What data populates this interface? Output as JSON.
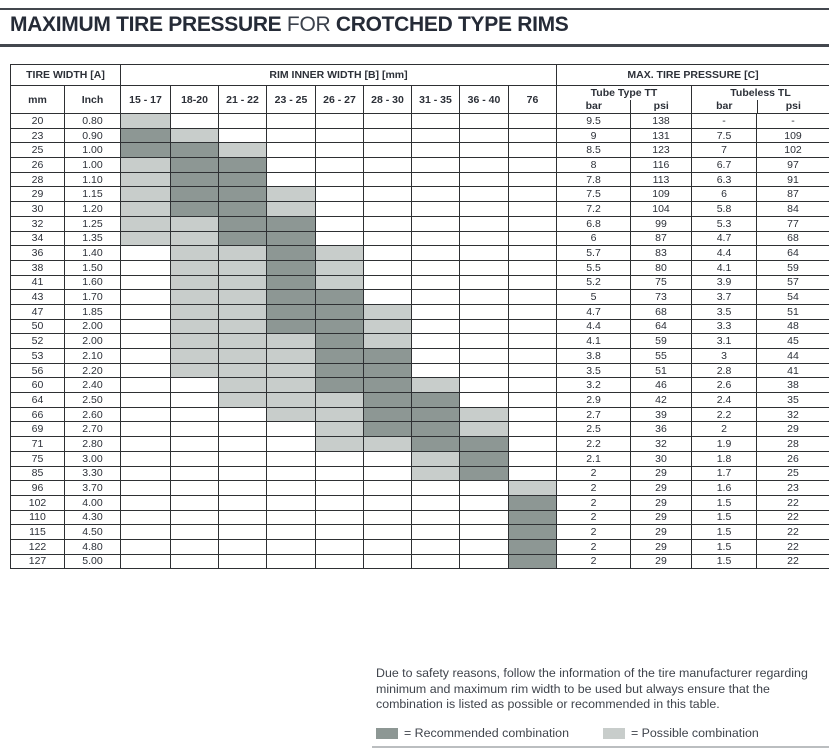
{
  "title": {
    "part1": "MAXIMUM TIRE PRESSURE",
    "part2": " FOR ",
    "part3": "CROTCHED TYPE RIMS"
  },
  "colors": {
    "recommended": "#8d9794",
    "possible": "#c8cdcb",
    "rule": "#43474e"
  },
  "table": {
    "group_headers": {
      "tire_width": "TIRE WIDTH [A]",
      "rim_inner_width": "RIM INNER WIDTH [B] [mm]",
      "max_pressure": "MAX. TIRE PRESSURE [C]"
    },
    "col_headers": {
      "mm": "mm",
      "inch": "Inch",
      "rim_widths": [
        "15 - 17",
        "18-20",
        "21 - 22",
        "23 - 25",
        "26 - 27",
        "28 - 30",
        "31 - 35",
        "36 - 40",
        "76"
      ],
      "tube_type": "Tube Type  TT",
      "tubeless": "Tubeless  TL",
      "bar": "bar",
      "psi": "psi"
    },
    "shading_legend": {
      "0": "none",
      "1": "possible",
      "2": "recommended"
    },
    "rows": [
      {
        "mm": "20",
        "inch": "0.80",
        "shading": [
          1,
          0,
          0,
          0,
          0,
          0,
          0,
          0,
          0
        ],
        "tt_bar": "9.5",
        "tt_psi": "138",
        "tl_bar": "-",
        "tl_psi": "-"
      },
      {
        "mm": "23",
        "inch": "0.90",
        "shading": [
          2,
          1,
          0,
          0,
          0,
          0,
          0,
          0,
          0
        ],
        "tt_bar": "9",
        "tt_psi": "131",
        "tl_bar": "7.5",
        "tl_psi": "109"
      },
      {
        "mm": "25",
        "inch": "1.00",
        "shading": [
          2,
          2,
          1,
          0,
          0,
          0,
          0,
          0,
          0
        ],
        "tt_bar": "8.5",
        "tt_psi": "123",
        "tl_bar": "7",
        "tl_psi": "102"
      },
      {
        "mm": "26",
        "inch": "1.00",
        "shading": [
          1,
          2,
          2,
          0,
          0,
          0,
          0,
          0,
          0
        ],
        "tt_bar": "8",
        "tt_psi": "116",
        "tl_bar": "6.7",
        "tl_psi": "97"
      },
      {
        "mm": "28",
        "inch": "1.10",
        "shading": [
          1,
          2,
          2,
          0,
          0,
          0,
          0,
          0,
          0
        ],
        "tt_bar": "7.8",
        "tt_psi": "113",
        "tl_bar": "6.3",
        "tl_psi": "91"
      },
      {
        "mm": "29",
        "inch": "1.15",
        "shading": [
          1,
          2,
          2,
          1,
          0,
          0,
          0,
          0,
          0
        ],
        "tt_bar": "7.5",
        "tt_psi": "109",
        "tl_bar": "6",
        "tl_psi": "87"
      },
      {
        "mm": "30",
        "inch": "1.20",
        "shading": [
          1,
          2,
          2,
          1,
          0,
          0,
          0,
          0,
          0
        ],
        "tt_bar": "7.2",
        "tt_psi": "104",
        "tl_bar": "5.8",
        "tl_psi": "84"
      },
      {
        "mm": "32",
        "inch": "1.25",
        "shading": [
          1,
          1,
          2,
          2,
          0,
          0,
          0,
          0,
          0
        ],
        "tt_bar": "6.8",
        "tt_psi": "99",
        "tl_bar": "5.3",
        "tl_psi": "77"
      },
      {
        "mm": "34",
        "inch": "1.35",
        "shading": [
          1,
          1,
          2,
          2,
          0,
          0,
          0,
          0,
          0
        ],
        "tt_bar": "6",
        "tt_psi": "87",
        "tl_bar": "4.7",
        "tl_psi": "68"
      },
      {
        "mm": "36",
        "inch": "1.40",
        "shading": [
          0,
          1,
          1,
          2,
          1,
          0,
          0,
          0,
          0
        ],
        "tt_bar": "5.7",
        "tt_psi": "83",
        "tl_bar": "4.4",
        "tl_psi": "64"
      },
      {
        "mm": "38",
        "inch": "1.50",
        "shading": [
          0,
          1,
          1,
          2,
          1,
          0,
          0,
          0,
          0
        ],
        "tt_bar": "5.5",
        "tt_psi": "80",
        "tl_bar": "4.1",
        "tl_psi": "59"
      },
      {
        "mm": "41",
        "inch": "1.60",
        "shading": [
          0,
          1,
          1,
          2,
          1,
          0,
          0,
          0,
          0
        ],
        "tt_bar": "5.2",
        "tt_psi": "75",
        "tl_bar": "3.9",
        "tl_psi": "57"
      },
      {
        "mm": "43",
        "inch": "1.70",
        "shading": [
          0,
          1,
          1,
          2,
          2,
          0,
          0,
          0,
          0
        ],
        "tt_bar": "5",
        "tt_psi": "73",
        "tl_bar": "3.7",
        "tl_psi": "54"
      },
      {
        "mm": "47",
        "inch": "1.85",
        "shading": [
          0,
          1,
          1,
          2,
          2,
          1,
          0,
          0,
          0
        ],
        "tt_bar": "4.7",
        "tt_psi": "68",
        "tl_bar": "3.5",
        "tl_psi": "51"
      },
      {
        "mm": "50",
        "inch": "2.00",
        "shading": [
          0,
          1,
          1,
          2,
          2,
          1,
          0,
          0,
          0
        ],
        "tt_bar": "4.4",
        "tt_psi": "64",
        "tl_bar": "3.3",
        "tl_psi": "48"
      },
      {
        "mm": "52",
        "inch": "2.00",
        "shading": [
          0,
          1,
          1,
          1,
          2,
          1,
          0,
          0,
          0
        ],
        "tt_bar": "4.1",
        "tt_psi": "59",
        "tl_bar": "3.1",
        "tl_psi": "45"
      },
      {
        "mm": "53",
        "inch": "2.10",
        "shading": [
          0,
          1,
          1,
          1,
          2,
          2,
          0,
          0,
          0
        ],
        "tt_bar": "3.8",
        "tt_psi": "55",
        "tl_bar": "3",
        "tl_psi": "44"
      },
      {
        "mm": "56",
        "inch": "2.20",
        "shading": [
          0,
          1,
          1,
          1,
          2,
          2,
          0,
          0,
          0
        ],
        "tt_bar": "3.5",
        "tt_psi": "51",
        "tl_bar": "2.8",
        "tl_psi": "41"
      },
      {
        "mm": "60",
        "inch": "2.40",
        "shading": [
          0,
          0,
          1,
          1,
          2,
          2,
          1,
          0,
          0
        ],
        "tt_bar": "3.2",
        "tt_psi": "46",
        "tl_bar": "2.6",
        "tl_psi": "38"
      },
      {
        "mm": "64",
        "inch": "2.50",
        "shading": [
          0,
          0,
          1,
          1,
          1,
          2,
          2,
          0,
          0
        ],
        "tt_bar": "2.9",
        "tt_psi": "42",
        "tl_bar": "2.4",
        "tl_psi": "35"
      },
      {
        "mm": "66",
        "inch": "2.60",
        "shading": [
          0,
          0,
          0,
          1,
          1,
          2,
          2,
          1,
          0
        ],
        "tt_bar": "2.7",
        "tt_psi": "39",
        "tl_bar": "2.2",
        "tl_psi": "32"
      },
      {
        "mm": "69",
        "inch": "2.70",
        "shading": [
          0,
          0,
          0,
          0,
          1,
          2,
          2,
          1,
          0
        ],
        "tt_bar": "2.5",
        "tt_psi": "36",
        "tl_bar": "2",
        "tl_psi": "29"
      },
      {
        "mm": "71",
        "inch": "2.80",
        "shading": [
          0,
          0,
          0,
          0,
          1,
          1,
          2,
          2,
          0
        ],
        "tt_bar": "2.2",
        "tt_psi": "32",
        "tl_bar": "1.9",
        "tl_psi": "28"
      },
      {
        "mm": "75",
        "inch": "3.00",
        "shading": [
          0,
          0,
          0,
          0,
          0,
          0,
          1,
          2,
          0
        ],
        "tt_bar": "2.1",
        "tt_psi": "30",
        "tl_bar": "1.8",
        "tl_psi": "26"
      },
      {
        "mm": "85",
        "inch": "3.30",
        "shading": [
          0,
          0,
          0,
          0,
          0,
          0,
          1,
          2,
          0
        ],
        "tt_bar": "2",
        "tt_psi": "29",
        "tl_bar": "1.7",
        "tl_psi": "25"
      },
      {
        "mm": "96",
        "inch": "3.70",
        "shading": [
          0,
          0,
          0,
          0,
          0,
          0,
          0,
          0,
          1
        ],
        "tt_bar": "2",
        "tt_psi": "29",
        "tl_bar": "1.6",
        "tl_psi": "23"
      },
      {
        "mm": "102",
        "inch": "4.00",
        "shading": [
          0,
          0,
          0,
          0,
          0,
          0,
          0,
          0,
          2
        ],
        "tt_bar": "2",
        "tt_psi": "29",
        "tl_bar": "1.5",
        "tl_psi": "22"
      },
      {
        "mm": "110",
        "inch": "4.30",
        "shading": [
          0,
          0,
          0,
          0,
          0,
          0,
          0,
          0,
          2
        ],
        "tt_bar": "2",
        "tt_psi": "29",
        "tl_bar": "1.5",
        "tl_psi": "22"
      },
      {
        "mm": "115",
        "inch": "4.50",
        "shading": [
          0,
          0,
          0,
          0,
          0,
          0,
          0,
          0,
          2
        ],
        "tt_bar": "2",
        "tt_psi": "29",
        "tl_bar": "1.5",
        "tl_psi": "22"
      },
      {
        "mm": "122",
        "inch": "4.80",
        "shading": [
          0,
          0,
          0,
          0,
          0,
          0,
          0,
          0,
          2
        ],
        "tt_bar": "2",
        "tt_psi": "29",
        "tl_bar": "1.5",
        "tl_psi": "22"
      },
      {
        "mm": "127",
        "inch": "5.00",
        "shading": [
          0,
          0,
          0,
          0,
          0,
          0,
          0,
          0,
          2
        ],
        "tt_bar": "2",
        "tt_psi": "29",
        "tl_bar": "1.5",
        "tl_psi": "22"
      }
    ]
  },
  "footer": {
    "note": "Due to safety reasons, follow the information of the tire manufacturer regarding minimum and maximum rim width to be used but always ensure that the combination is listed as possible or recommended in this table.",
    "legend_recommended": "= Recommended combination",
    "legend_possible": "= Possible combination"
  }
}
